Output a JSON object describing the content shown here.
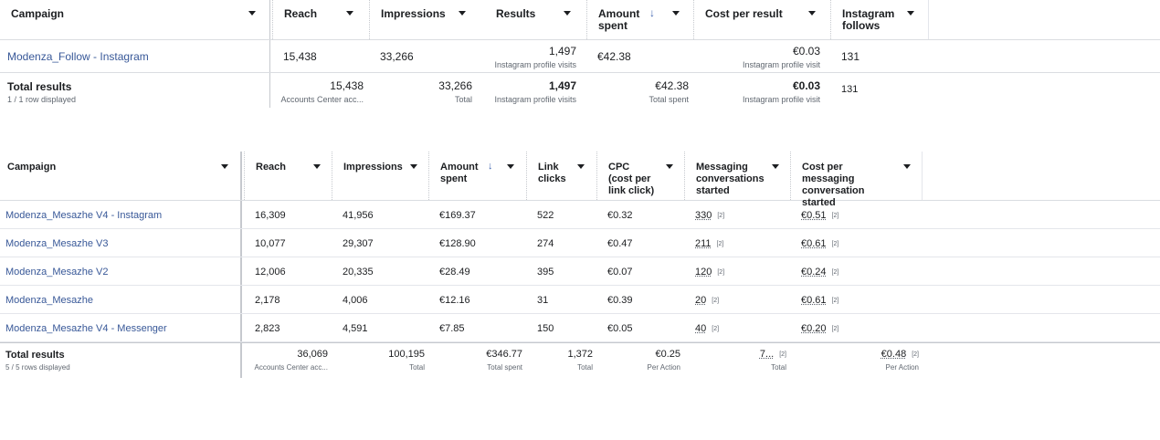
{
  "table1": {
    "headers": {
      "campaign": "Campaign",
      "reach": "Reach",
      "impressions": "Impressions",
      "results": "Results",
      "amount_spent": "Amount spent",
      "cost_per_result": "Cost per result",
      "instagram_follows": "Instagram follows"
    },
    "sort_icon": "↓",
    "row": {
      "campaign": "Modenza_Follow - Instagram",
      "reach": "15,438",
      "impressions": "33,266",
      "results": "1,497",
      "results_sub": "Instagram profile visits",
      "amount_spent": "€42.38",
      "cost_per_result": "€0.03",
      "cost_per_result_sub": "Instagram profile visit",
      "instagram_follows": "131"
    },
    "total": {
      "label": "Total results",
      "rows_displayed": "1 / 1 row displayed",
      "reach": "15,438",
      "reach_sub": "Accounts Center acc...",
      "impressions": "33,266",
      "impressions_sub": "Total",
      "results": "1,497",
      "results_sub": "Instagram profile visits",
      "amount_spent": "€42.38",
      "amount_spent_sub": "Total spent",
      "cost_per_result": "€0.03",
      "cost_per_result_sub": "Instagram profile visit",
      "instagram_follows": "131"
    }
  },
  "table2": {
    "headers": {
      "campaign": "Campaign",
      "reach": "Reach",
      "impressions": "Impressions",
      "amount_spent": "Amount spent",
      "link_clicks": "Link clicks",
      "cpc": "CPC (cost per link click)",
      "messaging": "Messaging conversations started",
      "cost_per_messaging": "Cost per messaging conversation started"
    },
    "sort_icon": "↓",
    "badge": "[2]",
    "rows": [
      {
        "campaign": "Modenza_Mesazhe V4 - Instagram",
        "reach": "16,309",
        "impressions": "41,956",
        "amount_spent": "€169.37",
        "link_clicks": "522",
        "cpc": "€0.32",
        "messaging": "330",
        "cost_per_messaging": "€0.51"
      },
      {
        "campaign": "Modenza_Mesazhe V3",
        "reach": "10,077",
        "impressions": "29,307",
        "amount_spent": "€128.90",
        "link_clicks": "274",
        "cpc": "€0.47",
        "messaging": "211",
        "cost_per_messaging": "€0.61"
      },
      {
        "campaign": "Modenza_Mesazhe V2",
        "reach": "12,006",
        "impressions": "20,335",
        "amount_spent": "€28.49",
        "link_clicks": "395",
        "cpc": "€0.07",
        "messaging": "120",
        "cost_per_messaging": "€0.24"
      },
      {
        "campaign": "Modenza_Mesazhe",
        "reach": "2,178",
        "impressions": "4,006",
        "amount_spent": "€12.16",
        "link_clicks": "31",
        "cpc": "€0.39",
        "messaging": "20",
        "cost_per_messaging": "€0.61"
      },
      {
        "campaign": "Modenza_Mesazhe V4 - Messenger",
        "reach": "2,823",
        "impressions": "4,591",
        "amount_spent": "€7.85",
        "link_clicks": "150",
        "cpc": "€0.05",
        "messaging": "40",
        "cost_per_messaging": "€0.20"
      }
    ],
    "total": {
      "label": "Total results",
      "rows_displayed": "5 / 5 rows displayed",
      "reach": "36,069",
      "reach_sub": "Accounts Center acc...",
      "impressions": "100,195",
      "impressions_sub": "Total",
      "amount_spent": "€346.77",
      "amount_spent_sub": "Total spent",
      "link_clicks": "1,372",
      "link_clicks_sub": "Total",
      "cpc": "€0.25",
      "cpc_sub": "Per Action",
      "messaging": "7...",
      "messaging_sub": "Total",
      "cost_per_messaging": "€0.48",
      "cost_per_messaging_sub": "Per Action"
    }
  }
}
